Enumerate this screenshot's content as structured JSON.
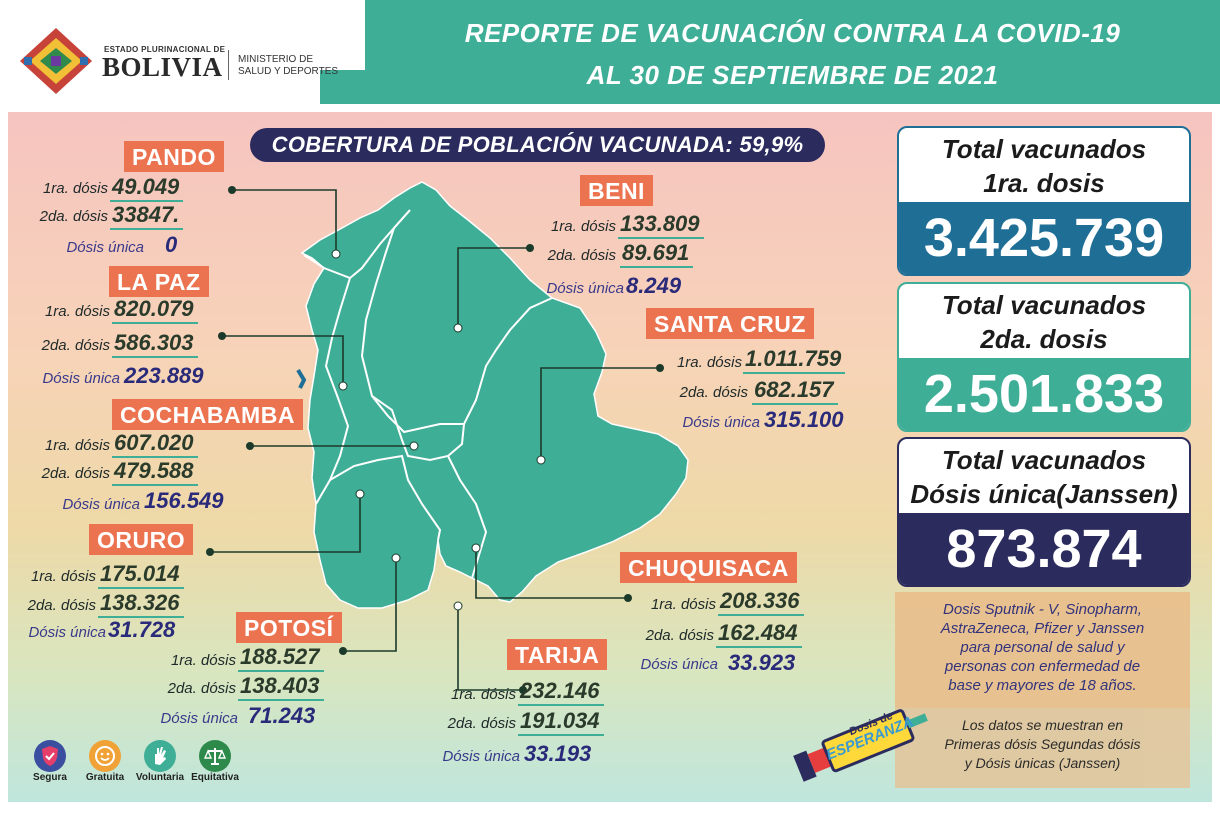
{
  "header": {
    "logo_line1": "ESTADO PLURINACIONAL DE",
    "logo_line2": "BOLIVIA",
    "ministry_line1": "MINISTERIO DE",
    "ministry_line2": "SALUD Y DEPORTES",
    "title_line1": "REPORTE DE VACUNACIÓN CONTRA LA COVID-19",
    "title_line2": "AL 30 DE SEPTIEMBRE DE 2021"
  },
  "coverage": {
    "label": "COBERTURA DE POBLACIÓN VACUNADA:",
    "value": "59,9%"
  },
  "departments": {
    "pando": {
      "name": "PANDO",
      "l1": "1ra. dósis",
      "v1": "49.049",
      "l2": "2da. dósis",
      "v2": "33847.",
      "lu": "Dósis única",
      "vu": "0"
    },
    "beni": {
      "name": "BENI",
      "l1": "1ra. dósis",
      "v1": "133.809",
      "l2": "2da. dósis",
      "v2": "89.691",
      "lu": "Dósis única",
      "vu": "8.249"
    },
    "la_paz": {
      "name": "LA PAZ",
      "l1": "1ra. dósis",
      "v1": "820.079",
      "l2": "2da. dósis",
      "v2": "586.303",
      "lu": "Dósis única",
      "vu": "223.889"
    },
    "santa_cruz": {
      "name": "SANTA CRUZ",
      "l1": "1ra. dósis",
      "v1": "1.011.759",
      "l2": "2da. dósis",
      "v2": "682.157",
      "lu": "Dósis única",
      "vu": "315.100"
    },
    "cochabamba": {
      "name": "COCHABAMBA",
      "l1": "1ra. dósis",
      "v1": "607.020",
      "l2": "2da. dósis",
      "v2": "479.588",
      "lu": "Dósis única",
      "vu": "156.549"
    },
    "oruro": {
      "name": "ORURO",
      "l1": "1ra. dósis",
      "v1": "175.014",
      "l2": "2da. dósis",
      "v2": "138.326",
      "lu": "Dósis única",
      "vu": "31.728"
    },
    "potosi": {
      "name": "POTOSÍ",
      "l1": "1ra. dósis",
      "v1": "188.527",
      "l2": "2da. dósis",
      "v2": "138.403",
      "lu": "Dósis única",
      "vu": "71.243"
    },
    "chuquisaca": {
      "name": "CHUQUISACA",
      "l1": "1ra. dósis",
      "v1": "208.336",
      "l2": "2da. dósis",
      "v2": "162.484",
      "lu": "Dósis única",
      "vu": "33.923"
    },
    "tarija": {
      "name": "TARIJA",
      "l1": "1ra. dósis",
      "v1": "232.146",
      "l2": "2da. dósis",
      "v2": "191.034",
      "lu": "Dósis única",
      "vu": "33.193"
    }
  },
  "totals": {
    "first": {
      "title1": "Total vacunados",
      "title2": "1ra. dosis",
      "value": "3.425.739",
      "color": "#1e6e96"
    },
    "second": {
      "title1": "Total vacunados",
      "title2": "2da. dosis",
      "value": "2.501.833",
      "color": "#3fae97"
    },
    "single": {
      "title1": "Total vacunados",
      "title2": "Dósis única(Janssen)",
      "value": "873.874",
      "color": "#2b2b5e"
    }
  },
  "notes": {
    "doses": [
      "Dosis Sputnik - V, Sinopharm,",
      "AstraZeneca, Pfizer y Janssen",
      "para personal de salud y",
      "personas con enfermedad de",
      "base y mayores de 18 años."
    ],
    "data_info": [
      "Los datos se muestran en",
      "Primeras dósis Segundas dósis",
      "y Dósis únicas (Janssen)"
    ],
    "campaign_line1": "Dosis de",
    "campaign_line2": "ESPERANZA"
  },
  "values_icons": [
    {
      "label": "Segura",
      "icon": "shield-check-icon",
      "color": "#3a4fa0"
    },
    {
      "label": "Gratuita",
      "icon": "smile-icon",
      "color": "#f0a236"
    },
    {
      "label": "Voluntaria",
      "icon": "raised-hand-icon",
      "color": "#3fae97"
    },
    {
      "label": "Equitativa",
      "icon": "balance-scale-icon",
      "color": "#2e8a4a"
    }
  ],
  "colors": {
    "teal": "#3fae97",
    "orange": "#ec7350",
    "navy": "#2b2b5e",
    "blue": "#1e6e96"
  }
}
